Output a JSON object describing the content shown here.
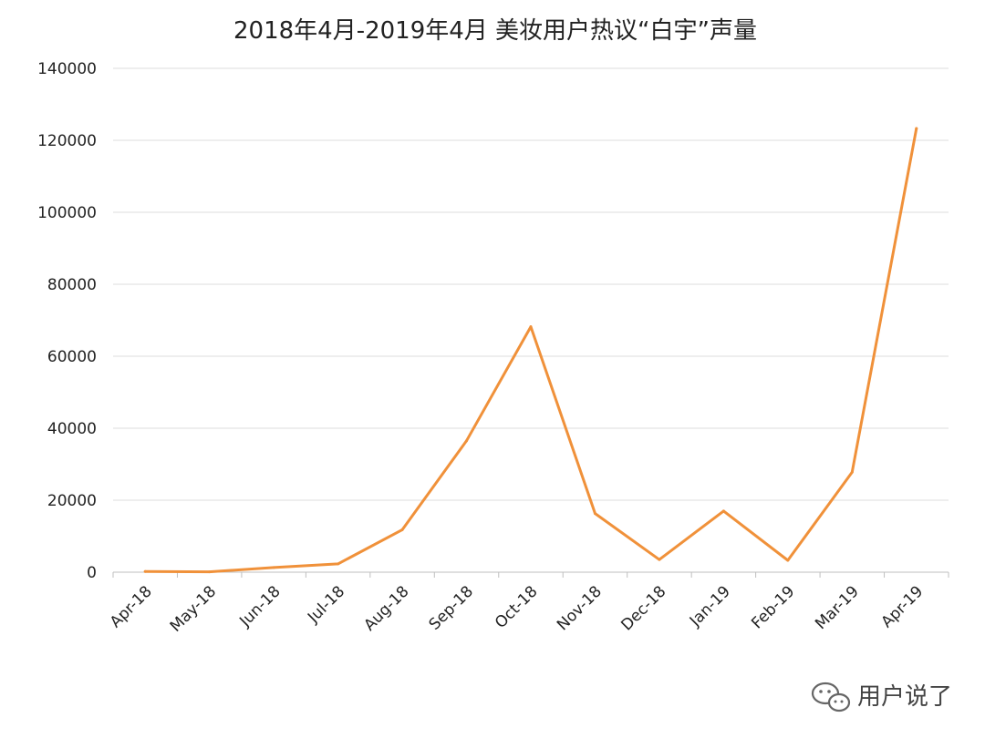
{
  "chart_data": {
    "type": "line",
    "title": "2018年4月-2019年4月 美妆用户热议“白宇”声量",
    "xlabel": "",
    "ylabel": "",
    "categories": [
      "Apr-18",
      "May-18",
      "Jun-18",
      "Jul-18",
      "Aug-18",
      "Sep-18",
      "Oct-18",
      "Nov-18",
      "Dec-18",
      "Jan-19",
      "Feb-19",
      "Mar-19",
      "Apr-19"
    ],
    "series": [
      {
        "values": [
          200,
          100,
          1300,
          2300,
          11800,
          36500,
          68200,
          16300,
          3500,
          17000,
          3300,
          27800,
          123300
        ]
      }
    ],
    "ylim": [
      0,
      140000
    ],
    "yticks": [
      0,
      20000,
      40000,
      60000,
      80000,
      100000,
      120000,
      140000
    ],
    "grid": true,
    "line_color": "#F0913A"
  },
  "watermark": {
    "text": "用户说了",
    "icon": "wechat-icon"
  }
}
